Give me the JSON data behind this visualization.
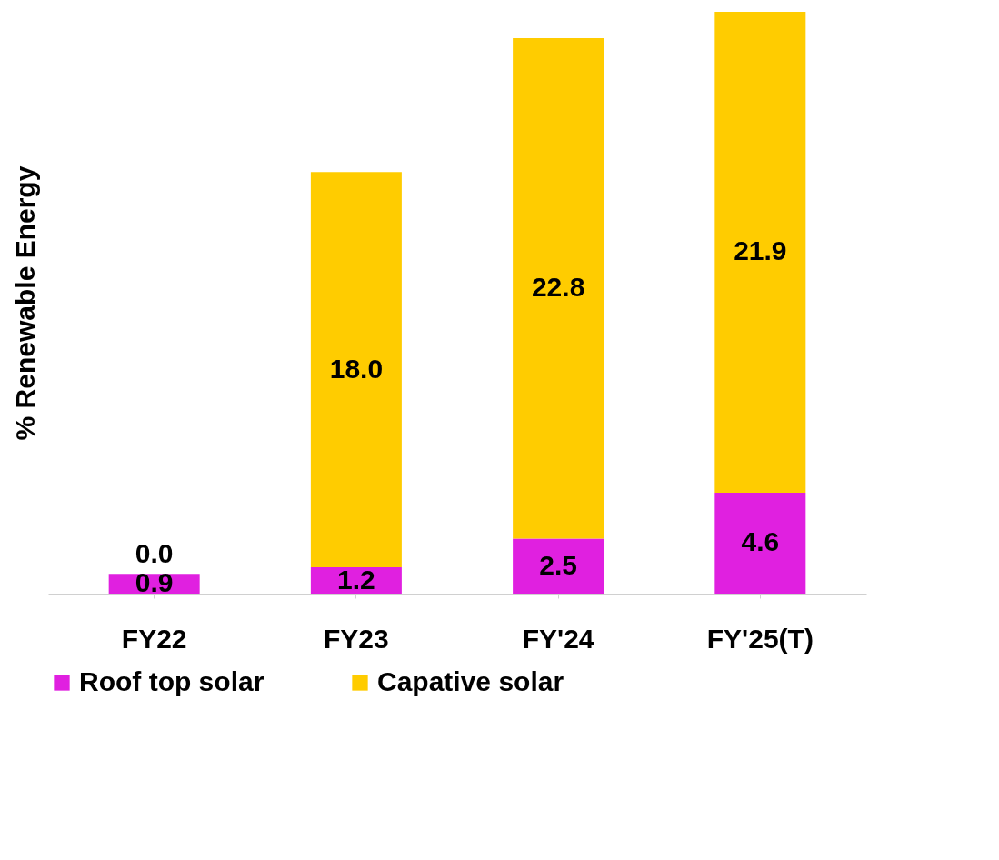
{
  "chart_data": {
    "type": "bar",
    "stacked": true,
    "ylabel": "% Renewable Energy",
    "categories": [
      "FY22",
      "FY23",
      "FY'24",
      "FY'25(T)"
    ],
    "series": [
      {
        "name": "Roof top solar",
        "color": "#e020e0",
        "values": [
          0.9,
          1.2,
          2.5,
          4.6
        ],
        "value_labels": [
          "0.9",
          "1.2",
          "2.5",
          "4.6"
        ]
      },
      {
        "name": "Capative solar",
        "color": "#ffcc00",
        "values": [
          0.0,
          18.0,
          22.8,
          21.9
        ],
        "value_labels": [
          "0.0",
          "18.0",
          "22.8",
          "21.9"
        ]
      }
    ],
    "legend": "bottom",
    "tick_labels": "x",
    "grid": false
  }
}
